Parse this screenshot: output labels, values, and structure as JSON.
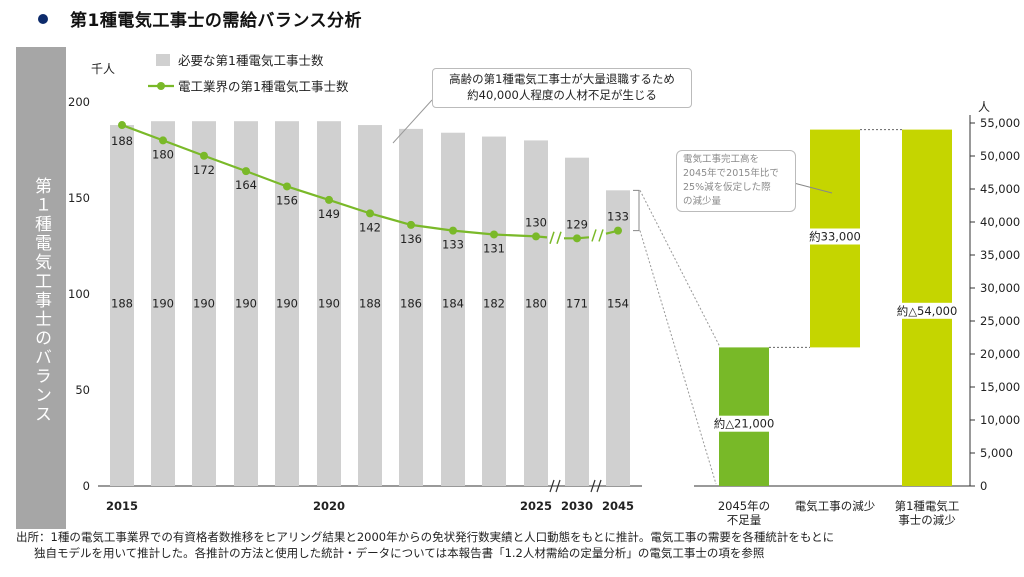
{
  "title": "第1種電気工事士の需給バランス分析",
  "sidebar_label": "第１種電気工事士のバランス",
  "annotation_main": [
    "高齢の第1種電気工事士が大量退職するため",
    "約40,000人程度の人材不足が生じる"
  ],
  "annotation_side": [
    "電気工事完工高を",
    "2045年で2015年比で",
    "25%減を仮定した際",
    "の減少量"
  ],
  "footnote": [
    "出所：1種の電気工事業界での有資格者数推移をヒアリング結果と2000年からの免状発行数実績と人口動態をもとに推計。電気工事の需要を各種統計をもとに",
    "独自モデルを用いて推計した。各推計の方法と使用した統計・データについては本報告書「1.2人材需給の定量分析」の電気工事士の項を参照"
  ],
  "colors": {
    "bar_gray": "#d0d0d0",
    "line_green": "#7ab929",
    "bar_dark_green": "#78b928",
    "bar_lime": "#c5d500",
    "sidebar": "#a6a6a6",
    "bullet": "#0d2b6b"
  },
  "chart_data": [
    {
      "type": "bar",
      "unit_label": "千人",
      "ylim": [
        0,
        200
      ],
      "yticks": [
        0,
        50,
        100,
        150,
        200
      ],
      "x_tick_labels": [
        "2015",
        "2020",
        "2025",
        "2030",
        "2045"
      ],
      "categories": [
        "2015",
        "2016",
        "2017",
        "2018",
        "2019",
        "2020",
        "2021",
        "2022",
        "2023",
        "2024",
        "2025",
        "2030",
        "2045"
      ],
      "series": [
        {
          "name": "必要な第1種電気工事士数",
          "kind": "bar",
          "values": [
            188,
            190,
            190,
            190,
            190,
            190,
            188,
            186,
            184,
            182,
            180,
            171,
            154
          ]
        },
        {
          "name": "電工業界の第1種電気工事士数",
          "kind": "line",
          "values": [
            188,
            180,
            172,
            164,
            156,
            149,
            142,
            136,
            133,
            131,
            130,
            129,
            133
          ]
        }
      ]
    },
    {
      "type": "bar",
      "subtype": "waterfall",
      "unit_label": "人",
      "ylim": [
        0,
        55000
      ],
      "yticks": [
        0,
        5000,
        10000,
        15000,
        20000,
        25000,
        30000,
        35000,
        40000,
        45000,
        50000,
        55000
      ],
      "ytick_labels": [
        "0",
        "5,000",
        "10,000",
        "15,000",
        "20,000",
        "25,000",
        "30,000",
        "35,000",
        "40,000",
        "45,000",
        "50,000",
        "55,000"
      ],
      "categories": [
        "2045年の不足量",
        "電気工事の減少",
        "第1種電気工事士の減少"
      ],
      "category_label_lines": [
        [
          "2045年の",
          "不足量"
        ],
        [
          "電気工事の減少"
        ],
        [
          "第1種電気工",
          "事士の減少"
        ]
      ],
      "bars": [
        {
          "start": 0,
          "end": 21000,
          "label": "約△21,000"
        },
        {
          "start": 21000,
          "end": 54000,
          "label": "約33,000"
        },
        {
          "start": 0,
          "end": 54000,
          "label": "約△54,000"
        }
      ]
    }
  ]
}
